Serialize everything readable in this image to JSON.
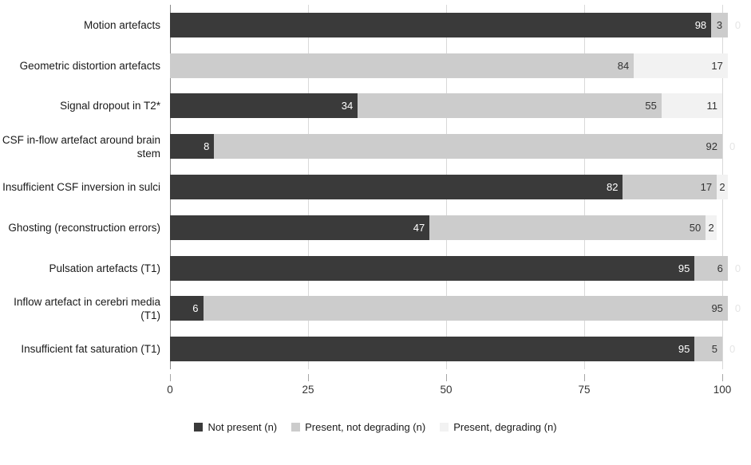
{
  "chart_data": {
    "type": "bar",
    "orientation": "horizontal",
    "stacked": true,
    "title": "",
    "xlabel": "",
    "ylabel": "",
    "xlim": [
      0,
      100
    ],
    "x_ticks": [
      "0",
      "25",
      "50",
      "75",
      "100"
    ],
    "grid": true,
    "legend_position": "bottom",
    "categories": [
      "Motion artefacts",
      "Geometric distortion artefacts",
      "Signal dropout in T2*",
      "CSF in-flow artefact around brain stem",
      "Insufficient CSF inversion in sulci",
      "Ghosting (reconstruction errors)",
      "Pulsation artefacts (T1)",
      "Inflow artefact in cerebri media (T1)",
      "Insufficient fat saturation (T1)"
    ],
    "series": [
      {
        "name": "Not present (n)",
        "color": "#3a3a3a",
        "label_color": "#ffffff",
        "values": [
          98,
          0,
          34,
          8,
          82,
          47,
          95,
          6,
          95
        ]
      },
      {
        "name": "Present, not degrading (n)",
        "color": "#cccccc",
        "label_color": "#333333",
        "values": [
          3,
          84,
          55,
          92,
          17,
          50,
          6,
          95,
          5
        ]
      },
      {
        "name": "Present, degrading (n)",
        "color": "#f2f2f2",
        "label_color": "#333333",
        "values": [
          0,
          17,
          11,
          0,
          2,
          2,
          0,
          0,
          0
        ]
      }
    ],
    "colors": {
      "zero_label_outside": "#e5e5e5",
      "zero_label_on_bar": "#ffffff",
      "axis_line": "#8c8c8c",
      "gridline": "#d9d9d9",
      "tick_label": "#333333",
      "category_label": "#1a1a1a",
      "background": "#ffffff"
    }
  }
}
